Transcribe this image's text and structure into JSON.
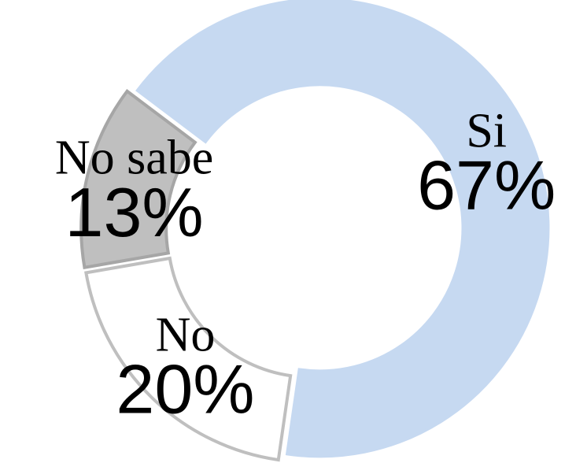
{
  "chart_data": {
    "type": "donut",
    "categories": [
      "Si",
      "No",
      "No sabe"
    ],
    "values": [
      67,
      20,
      13
    ],
    "value_labels": [
      "67%",
      "20%",
      "13%"
    ],
    "colors": [
      "#c6d9f1",
      "#ffffff",
      "#bfbfbf"
    ],
    "edge_colors": [
      "#c6d9f1",
      "#bfbfbf",
      "#a6a6a6"
    ]
  }
}
